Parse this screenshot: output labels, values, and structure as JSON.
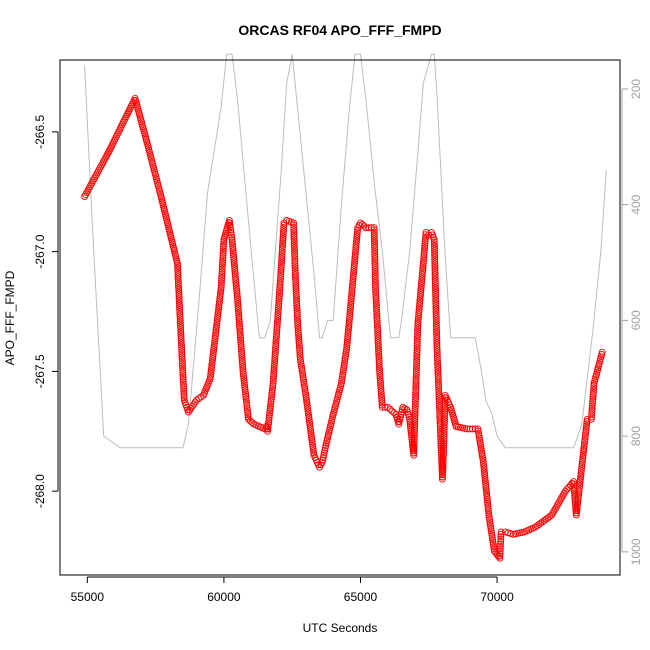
{
  "chart_data": {
    "type": "scatter",
    "title": "ORCAS RF04 APO_FFF_FMPD",
    "xlabel": "UTC Seconds",
    "ylabel": "APO_FFF_FMPD",
    "xlim": [
      54000,
      74500
    ],
    "ylim": [
      -268.35,
      -266.2
    ],
    "x_ticks": [
      55000,
      60000,
      65000,
      70000
    ],
    "x_tick_labels": [
      "55000",
      "60000",
      "65000",
      "70000"
    ],
    "y_ticks": [
      -266.5,
      -267.0,
      -267.5,
      -268.0
    ],
    "y_tick_labels": [
      "-266.5",
      "-267.0",
      "-267.5",
      "-268.0"
    ],
    "secondary_axis": {
      "side": "right",
      "color": "#a0a0a0",
      "reversed": true,
      "ylim": [
        1040,
        150
      ],
      "ticks": [
        200,
        400,
        600,
        800,
        1000
      ],
      "tick_labels": [
        "200",
        "400",
        "600",
        "800",
        "1000"
      ]
    },
    "series": [
      {
        "role": "points",
        "marker": "open-circle",
        "color": "#ff0000",
        "x": [
          54900,
          55800,
          56750,
          57200,
          57700,
          58300,
          58450,
          58550,
          58700,
          59000,
          59250,
          59500,
          59900,
          60000,
          60200,
          60300,
          60500,
          60700,
          60900,
          61100,
          61500,
          61550,
          61600,
          61800,
          62050,
          62200,
          62300,
          62550,
          62600,
          62700,
          62800,
          63000,
          63300,
          63500,
          63600,
          63750,
          64000,
          64300,
          64500,
          64900,
          65000,
          65200,
          65500,
          65550,
          65700,
          65800,
          66000,
          66300,
          66350,
          66400,
          66550,
          66700,
          66800,
          66950,
          67100,
          67400,
          67500,
          67600,
          67700,
          67800,
          68000,
          68050,
          68100,
          68300,
          68500,
          68900,
          69300,
          69500,
          69700,
          69900,
          70100,
          70150,
          70300,
          70600,
          71000,
          71400,
          72000,
          72500,
          72800,
          72900,
          73300,
          73450,
          73550,
          73850
        ],
        "y": [
          -266.77,
          -266.58,
          -266.36,
          -266.55,
          -266.77,
          -267.05,
          -267.4,
          -267.62,
          -267.67,
          -267.62,
          -267.6,
          -267.53,
          -267.15,
          -266.95,
          -266.87,
          -266.95,
          -267.2,
          -267.5,
          -267.7,
          -267.72,
          -267.74,
          -267.73,
          -267.75,
          -267.55,
          -267.15,
          -266.88,
          -266.87,
          -266.88,
          -267.05,
          -267.3,
          -267.45,
          -267.6,
          -267.85,
          -267.9,
          -267.88,
          -267.8,
          -267.68,
          -267.55,
          -267.4,
          -266.9,
          -266.88,
          -266.9,
          -266.9,
          -267.15,
          -267.5,
          -267.65,
          -267.65,
          -267.68,
          -267.7,
          -267.72,
          -267.65,
          -267.66,
          -267.7,
          -267.85,
          -267.3,
          -266.92,
          -266.93,
          -266.92,
          -266.95,
          -267.4,
          -267.95,
          -267.8,
          -267.6,
          -267.65,
          -267.73,
          -267.74,
          -267.74,
          -267.88,
          -268.1,
          -268.25,
          -268.28,
          -268.17,
          -268.17,
          -268.18,
          -268.17,
          -268.15,
          -268.1,
          -268.0,
          -267.96,
          -268.1,
          -267.7,
          -267.7,
          -267.55,
          -267.42
        ]
      },
      {
        "role": "secondary-line",
        "axis": "right",
        "color": "#bdbdbd",
        "x": [
          54900,
          55200,
          55600,
          56200,
          58500,
          58700,
          59100,
          59400,
          59900,
          60100,
          60300,
          60500,
          61000,
          61300,
          61400,
          61500,
          61700,
          62100,
          62300,
          62500,
          63300,
          63500,
          63600,
          63800,
          64000,
          64300,
          64600,
          64800,
          65000,
          65200,
          65500,
          65800,
          66100,
          66300,
          66400,
          66500,
          66800,
          67100,
          67300,
          67600,
          67700,
          67800,
          68100,
          68300,
          68600,
          69200,
          69400,
          69600,
          69800,
          70000,
          70300,
          72000,
          72800,
          73100,
          73500,
          73800,
          74000
        ],
        "y": [
          160,
          450,
          800,
          820,
          820,
          780,
          560,
          380,
          230,
          140,
          140,
          220,
          480,
          630,
          630,
          630,
          600,
          340,
          190,
          140,
          520,
          630,
          630,
          600,
          600,
          400,
          230,
          140,
          140,
          220,
          360,
          480,
          630,
          630,
          630,
          600,
          480,
          310,
          190,
          140,
          140,
          210,
          490,
          630,
          630,
          630,
          680,
          740,
          760,
          800,
          820,
          820,
          820,
          780,
          620,
          480,
          340
        ]
      }
    ]
  }
}
